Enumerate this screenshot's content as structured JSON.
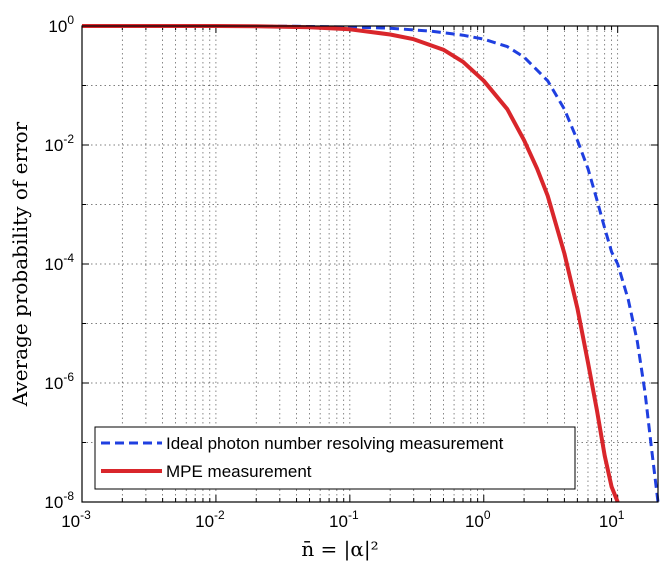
{
  "chart_data": {
    "type": "line",
    "xlabel": "n̄ = |α|²",
    "ylabel": "Average probability of error",
    "x_scale": "log",
    "y_scale": "log",
    "xlim": [
      0.001,
      20
    ],
    "ylim": [
      1e-08,
      1
    ],
    "grid": true,
    "legend_position": "bottom-left",
    "x_ticks": [
      {
        "base": "10",
        "exp": "-3"
      },
      {
        "base": "10",
        "exp": "-2"
      },
      {
        "base": "10",
        "exp": "-1"
      },
      {
        "base": "10",
        "exp": "0"
      },
      {
        "base": "10",
        "exp": "1"
      }
    ],
    "y_ticks": [
      {
        "base": "10",
        "exp": "0"
      },
      {
        "base": "10",
        "exp": "-2"
      },
      {
        "base": "10",
        "exp": "-4"
      },
      {
        "base": "10",
        "exp": "-6"
      },
      {
        "base": "10",
        "exp": "-8"
      }
    ],
    "series": [
      {
        "name": "Ideal photon number resolving measurement",
        "color": "#1f3fe0",
        "style": "dashed",
        "x": [
          0.001,
          0.01,
          0.04,
          0.1,
          0.2,
          0.4,
          0.7,
          1,
          1.5,
          2,
          3,
          4,
          5,
          6,
          7,
          8,
          9,
          10,
          12,
          14,
          16,
          18,
          20
        ],
        "y": [
          1,
          1,
          0.99,
          0.96,
          0.92,
          0.82,
          0.7,
          0.6,
          0.45,
          0.3,
          0.12,
          0.04,
          0.012,
          0.004,
          0.0012,
          0.0004,
          0.00016,
          0.0001,
          2.5e-05,
          5e-06,
          7e-07,
          7e-08,
          1e-08
        ]
      },
      {
        "name": "MPE measurement",
        "color": "#d9262b",
        "style": "solid",
        "x": [
          0.001,
          0.01,
          0.02,
          0.05,
          0.1,
          0.2,
          0.3,
          0.5,
          0.7,
          1,
          1.5,
          2,
          2.5,
          3,
          4,
          5,
          6,
          7,
          8,
          9,
          10
        ],
        "y": [
          1,
          1,
          0.99,
          0.95,
          0.88,
          0.72,
          0.6,
          0.4,
          0.25,
          0.12,
          0.04,
          0.012,
          0.004,
          0.0014,
          0.00015,
          1.8e-05,
          2.2e-06,
          3.5e-07,
          6e-08,
          1.8e-08,
          1e-08
        ]
      }
    ]
  }
}
